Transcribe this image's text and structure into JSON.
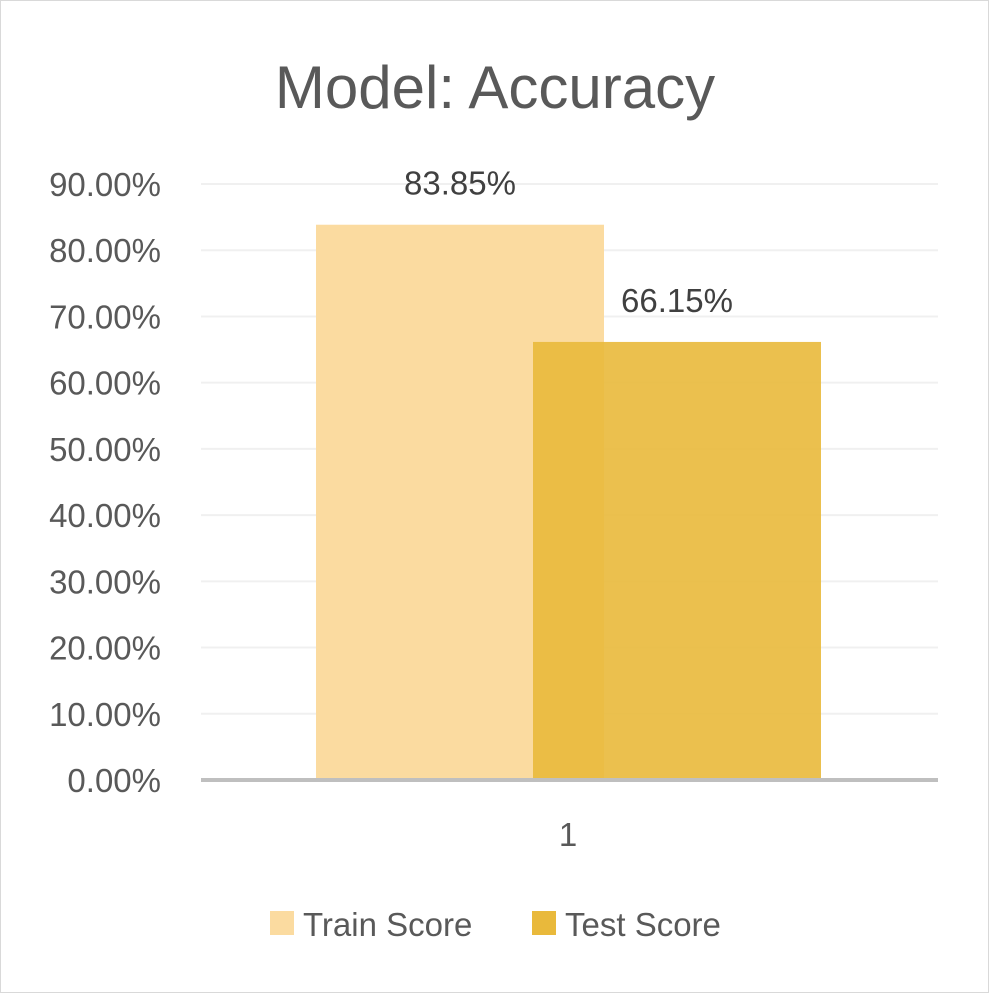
{
  "chart_data": {
    "type": "bar",
    "title": "Model: Accuracy",
    "categories": [
      "1"
    ],
    "series": [
      {
        "name": "Train Score",
        "values": [
          83.85
        ],
        "label": "83.85%",
        "color": "#FBDBA0"
      },
      {
        "name": "Test Score",
        "values": [
          66.15
        ],
        "label": "66.15%",
        "color": "#E9B93B"
      }
    ],
    "y_ticks": [
      {
        "value": 0,
        "label": "0.00%"
      },
      {
        "value": 10,
        "label": "10.00%"
      },
      {
        "value": 20,
        "label": "20.00%"
      },
      {
        "value": 30,
        "label": "30.00%"
      },
      {
        "value": 40,
        "label": "40.00%"
      },
      {
        "value": 50,
        "label": "50.00%"
      },
      {
        "value": 60,
        "label": "60.00%"
      },
      {
        "value": 70,
        "label": "70.00%"
      },
      {
        "value": 80,
        "label": "80.00%"
      },
      {
        "value": 90,
        "label": "90.00%"
      }
    ],
    "xlabel": "",
    "ylabel": "",
    "ylim": [
      0,
      90
    ],
    "grid": true,
    "legend": "bottom",
    "colors": {
      "grid": "#F0F0F0",
      "axis": "#BFBFBF"
    }
  }
}
